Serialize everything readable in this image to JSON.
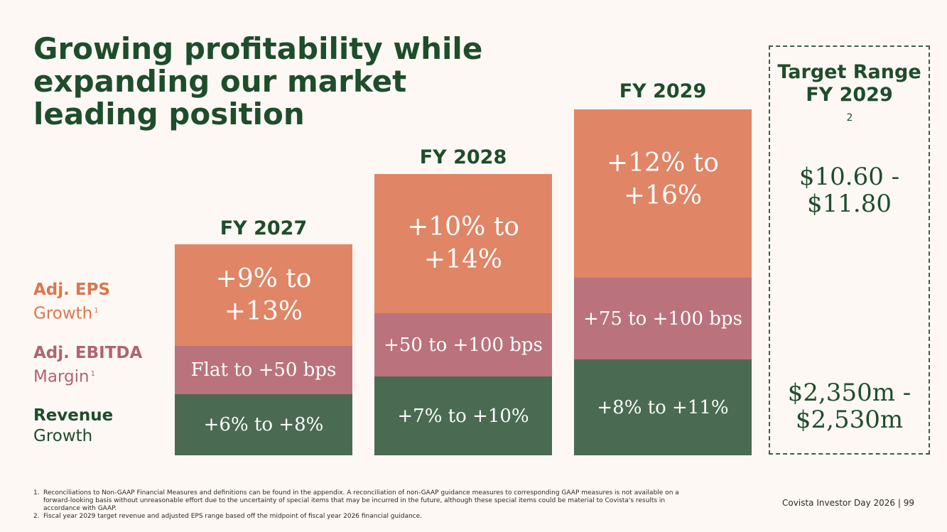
{
  "title": {
    "line1": "Growing profitability while",
    "line2": "expanding our market",
    "line3": "leading position"
  },
  "row_labels": {
    "eps": {
      "bold": "Adj. EPS",
      "normal": "Growth",
      "sup": "1"
    },
    "ebitda": {
      "bold": "Adj. EBITDA",
      "normal": "Margin",
      "sup": "1"
    },
    "revenue": {
      "bold": "Revenue",
      "normal": "Growth"
    }
  },
  "years": [
    {
      "label": "FY 2027",
      "eps_line1": "+9% to",
      "eps_line2": "+13%",
      "ebitda": "Flat to +50 bps",
      "revenue": "+6% to +8%"
    },
    {
      "label": "FY 2028",
      "eps_line1": "+10% to",
      "eps_line2": "+14%",
      "ebitda": "+50 to +100 bps",
      "revenue": "+7% to +10%"
    },
    {
      "label": "FY 2029",
      "eps_line1": "+12% to",
      "eps_line2": "+16%",
      "ebitda": "+75 to +100 bps",
      "revenue": "+8% to +11%"
    }
  ],
  "target": {
    "title_line1": "Target Range",
    "title_line2": "FY 2029",
    "title_sup": "2",
    "eps_line1": "$10.60 -",
    "eps_line2": "$11.80",
    "revenue_line1": "$2,350m -",
    "revenue_line2": "$2,530m"
  },
  "footnotes": [
    {
      "num": "1.",
      "text": "Reconciliations to Non-GAAP Financial Measures and definitions can be found in the appendix. A reconciliation of non-GAAP guidance measures to corresponding GAAP measures is not available on a forward-looking basis without unreasonable effort due to the uncertainty of special items that may be incurred in the future, although these special items could be material to Covista's results in accordance with GAAP."
    },
    {
      "num": "2.",
      "text": "Fiscal year 2029 target revenue and adjusted EPS range based off the midpoint of fiscal year 2026 financial guidance."
    }
  ],
  "footer": "Covista Investor Day 2026 | 99"
}
